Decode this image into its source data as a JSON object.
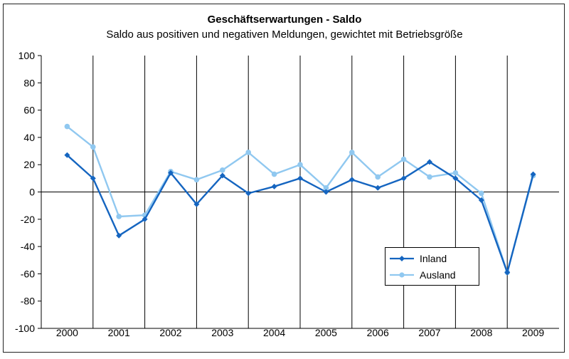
{
  "chart_data": {
    "type": "line",
    "title": "Geschäftserwartungen - Saldo",
    "subtitle": "Saldo aus positiven und negativen Meldungen, gewichtet mit Betriebsgröße",
    "ylim": [
      -100,
      100
    ],
    "yticks": [
      100,
      80,
      60,
      40,
      20,
      0,
      -20,
      -40,
      -60,
      -80,
      -100
    ],
    "year_labels": [
      "2000",
      "2001",
      "2002",
      "2003",
      "2004",
      "2005",
      "2006",
      "2007",
      "2008",
      "2009"
    ],
    "points_per_year": 2,
    "grid": "vertical year separators, horizontal zero line",
    "legend_position": "lower-right",
    "series": [
      {
        "name": "Inland",
        "color": "#1565c0",
        "marker": "diamond",
        "values": [
          27,
          10,
          -32,
          -20,
          14,
          -9,
          12,
          -1,
          4,
          10,
          0,
          9,
          3,
          10,
          22,
          10,
          -6,
          -59,
          13
        ]
      },
      {
        "name": "Ausland",
        "color": "#90c8f0",
        "marker": "circle",
        "values": [
          48,
          33,
          -18,
          -17,
          15,
          9,
          16,
          29,
          13,
          20,
          3,
          29,
          11,
          24,
          11,
          14,
          -1,
          -59,
          12
        ]
      }
    ]
  }
}
